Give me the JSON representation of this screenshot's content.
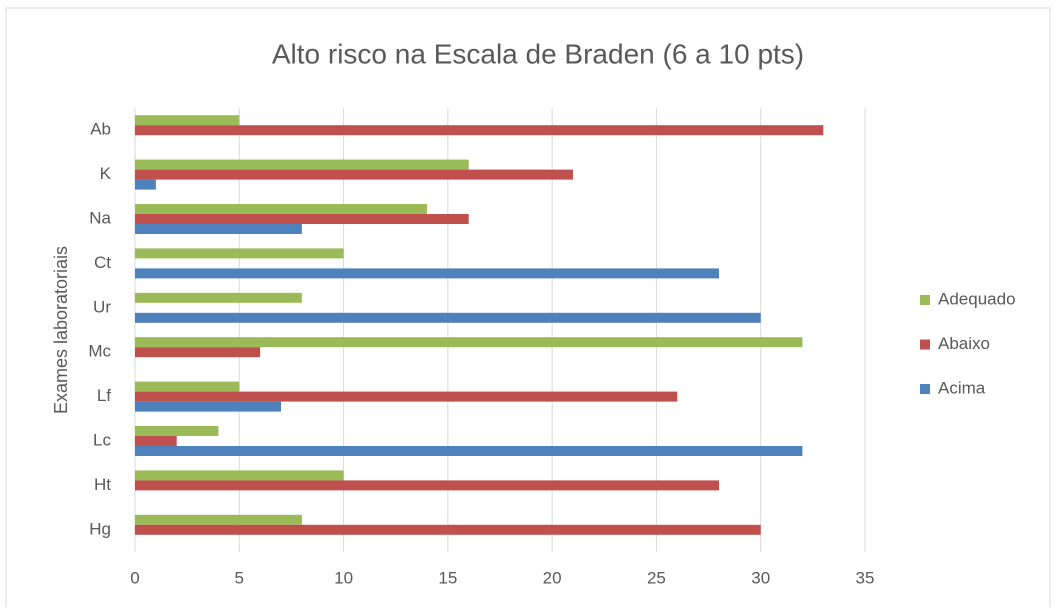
{
  "chart_data": {
    "type": "barh",
    "title": "Alto risco na Escala de Braden (6 a 10 pts)",
    "y_label": "Exames laboratoriais",
    "categories": [
      "Ab",
      "K",
      "Na",
      "Ct",
      "Ur",
      "Mc",
      "Lf",
      "Lc",
      "Ht",
      "Hg"
    ],
    "series": [
      {
        "name": "Adequado",
        "color": "#9bbb59",
        "values": [
          5,
          16,
          14,
          10,
          8,
          32,
          5,
          4,
          10,
          8
        ]
      },
      {
        "name": "Abaixo",
        "color": "#c0504d",
        "values": [
          33,
          21,
          16,
          0,
          0,
          6,
          26,
          2,
          28,
          30
        ]
      },
      {
        "name": "Acima",
        "color": "#4f81bd",
        "values": [
          0,
          1,
          8,
          28,
          30,
          0,
          7,
          32,
          0,
          0
        ]
      }
    ],
    "xlim": [
      0,
      35
    ],
    "xticks": [
      0,
      5,
      10,
      15,
      20,
      25,
      30,
      35
    ],
    "grid": true,
    "legend": "right"
  }
}
